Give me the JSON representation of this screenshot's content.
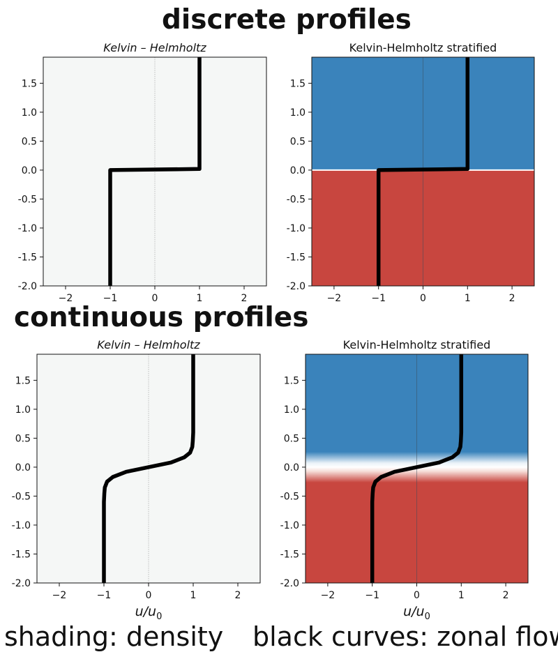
{
  "headings": {
    "top": "discrete profiles",
    "middle": "continuous profiles"
  },
  "footer": {
    "left": "shading: density",
    "right": "black curves: zonal flow"
  },
  "colors": {
    "upper_fluid": "#3a83bb",
    "lower_fluid": "#c8463f",
    "unstratified_fill": "#f5f7f6",
    "curve": "#000000"
  },
  "chart_data": [
    {
      "type": "line",
      "panel": "discrete-unstratified",
      "title": "Kelvin – Helmholtz",
      "title_style": "italic",
      "xlabel": "",
      "xlim": [
        -2.5,
        2.5
      ],
      "ylim": [
        -2.0,
        1.95
      ],
      "xticks": [
        -2,
        -1,
        0,
        1,
        2
      ],
      "yticks": [
        -2.0,
        -1.5,
        -1.0,
        -0.5,
        0.0,
        0.5,
        1.0,
        1.5
      ],
      "shading": "none",
      "x": [
        -1,
        -1,
        1,
        1
      ],
      "y": [
        -2.0,
        0.0,
        0.02,
        1.95
      ]
    },
    {
      "type": "line",
      "panel": "discrete-stratified",
      "title": "Kelvin-Helmholtz stratified",
      "title_style": "normal",
      "xlabel": "",
      "xlim": [
        -2.5,
        2.5
      ],
      "ylim": [
        -2.0,
        1.95
      ],
      "xticks": [
        -2,
        -1,
        0,
        1,
        2
      ],
      "yticks": [
        -2.0,
        -1.5,
        -1.0,
        -0.5,
        0.0,
        0.5,
        1.0,
        1.5
      ],
      "shading": "step",
      "interface_y": 0.0,
      "x": [
        -1,
        -1,
        1,
        1
      ],
      "y": [
        -2.0,
        0.0,
        0.02,
        1.95
      ]
    },
    {
      "type": "line",
      "panel": "continuous-unstratified",
      "title": "Kelvin – Helmholtz",
      "title_style": "italic",
      "xlabel": "u/u0",
      "xlim": [
        -2.5,
        2.5
      ],
      "ylim": [
        -2.0,
        1.95
      ],
      "xticks": [
        -2,
        -1,
        0,
        1,
        2
      ],
      "yticks": [
        -2.0,
        -1.5,
        -1.0,
        -0.5,
        0.0,
        0.5,
        1.0,
        1.5
      ],
      "shading": "none",
      "x": [
        -1.0,
        -1.0,
        -0.99,
        -0.98,
        -0.93,
        -0.8,
        -0.5,
        0.0,
        0.5,
        0.8,
        0.93,
        0.98,
        0.99,
        1.0,
        1.0
      ],
      "y": [
        -2.0,
        -0.6,
        -0.45,
        -0.35,
        -0.25,
        -0.17,
        -0.08,
        0.0,
        0.08,
        0.17,
        0.25,
        0.35,
        0.45,
        0.6,
        1.95
      ]
    },
    {
      "type": "line",
      "panel": "continuous-stratified",
      "title": "Kelvin-Helmholtz stratified",
      "title_style": "normal",
      "xlabel": "u/u0",
      "xlim": [
        -2.5,
        2.5
      ],
      "ylim": [
        -2.0,
        1.95
      ],
      "xticks": [
        -2,
        -1,
        0,
        1,
        2
      ],
      "yticks": [
        -2.0,
        -1.5,
        -1.0,
        -0.5,
        0.0,
        0.5,
        1.0,
        1.5
      ],
      "shading": "smooth",
      "interface_y": 0.0,
      "x": [
        -1.0,
        -1.0,
        -0.99,
        -0.98,
        -0.93,
        -0.8,
        -0.5,
        0.0,
        0.5,
        0.8,
        0.93,
        0.98,
        0.99,
        1.0,
        1.0
      ],
      "y": [
        -2.0,
        -0.6,
        -0.45,
        -0.35,
        -0.25,
        -0.17,
        -0.08,
        0.0,
        0.08,
        0.17,
        0.25,
        0.35,
        0.45,
        0.6,
        1.95
      ]
    }
  ]
}
